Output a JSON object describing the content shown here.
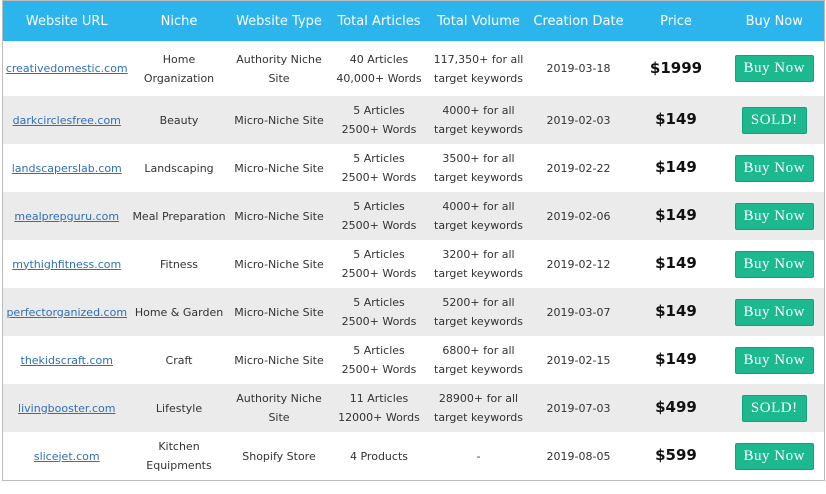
{
  "table": {
    "headers": [
      "Website URL",
      "Niche",
      "Website Type",
      "Total Articles",
      "Total Volume",
      "Creation Date",
      "Price",
      "Buy Now"
    ],
    "rows": [
      {
        "url": "creativedomestic.com",
        "niche": [
          "Home",
          "Organization"
        ],
        "type": [
          "Authority Niche",
          "Site"
        ],
        "articles": [
          "40 Articles",
          "40,000+ Words"
        ],
        "volume": [
          "117,350+ for all",
          "target keywords"
        ],
        "date": "2019-03-18",
        "price": "$1999",
        "button": "Buy Now"
      },
      {
        "url": "darkcirclesfree.com",
        "niche": [
          "Beauty"
        ],
        "type": [
          "Micro-Niche Site"
        ],
        "articles": [
          "5 Articles",
          "2500+ Words"
        ],
        "volume": [
          "4000+ for all",
          "target keywords"
        ],
        "date": "2019-02-03",
        "price": "$149",
        "button": "SOLD!"
      },
      {
        "url": "landscaperslab.com",
        "niche": [
          "Landscaping"
        ],
        "type": [
          "Micro-Niche Site"
        ],
        "articles": [
          "5 Articles",
          "2500+ Words"
        ],
        "volume": [
          "3500+ for all",
          "target keywords"
        ],
        "date": "2019-02-22",
        "price": "$149",
        "button": "Buy Now"
      },
      {
        "url": "mealprepguru.com",
        "niche": [
          "Meal Preparation"
        ],
        "type": [
          "Micro-Niche Site"
        ],
        "articles": [
          "5 Articles",
          "2500+ Words"
        ],
        "volume": [
          "4000+ for all",
          "target keywords"
        ],
        "date": "2019-02-06",
        "price": "$149",
        "button": "Buy Now"
      },
      {
        "url": "mythighfitness.com",
        "niche": [
          "Fitness"
        ],
        "type": [
          "Micro-Niche Site"
        ],
        "articles": [
          "5 Articles",
          "2500+ Words"
        ],
        "volume": [
          "3200+ for all",
          "target keywords"
        ],
        "date": "2019-02-12",
        "price": "$149",
        "button": "Buy Now"
      },
      {
        "url": "perfectorganized.com",
        "niche": [
          "Home & Garden"
        ],
        "type": [
          "Micro-Niche Site"
        ],
        "articles": [
          "5 Articles",
          "2500+ Words"
        ],
        "volume": [
          "5200+ for all",
          "target keywords"
        ],
        "date": "2019-03-07",
        "price": "$149",
        "button": "Buy Now"
      },
      {
        "url": "thekidscraft.com",
        "niche": [
          "Craft"
        ],
        "type": [
          "Micro-Niche Site"
        ],
        "articles": [
          "5 Articles",
          "2500+ Words"
        ],
        "volume": [
          "6800+ for all",
          "target keywords"
        ],
        "date": "2019-02-15",
        "price": "$149",
        "button": "Buy Now"
      },
      {
        "url": "livingbooster.com",
        "niche": [
          "Lifestyle"
        ],
        "type": [
          "Authority Niche",
          "Site"
        ],
        "articles": [
          "11 Articles",
          "12000+ Words"
        ],
        "volume": [
          "28900+ for all",
          "target keywords"
        ],
        "date": "2019-07-03",
        "price": "$499",
        "button": "SOLD!"
      },
      {
        "url": "slicejet.com",
        "niche": [
          "Kitchen",
          "Equipments"
        ],
        "type": [
          "Shopify Store"
        ],
        "articles": [
          "4 Products"
        ],
        "volume": [
          "-"
        ],
        "date": "2019-08-05",
        "price": "$599",
        "button": "Buy Now"
      }
    ]
  }
}
